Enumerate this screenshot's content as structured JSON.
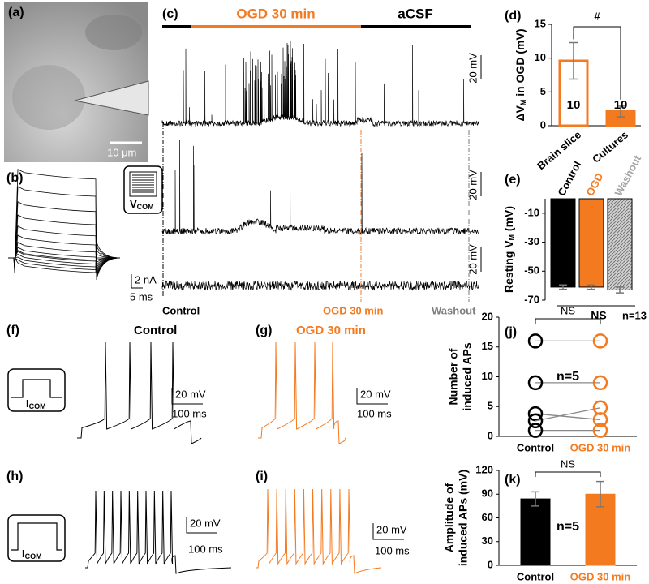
{
  "panels": {
    "a": {
      "label": "(a)",
      "scale": "10 μm"
    },
    "b": {
      "label": "(b)",
      "inset": [
        "V",
        "COM"
      ],
      "scale_y": "2 nA",
      "scale_x": "5 ms"
    },
    "c": {
      "label": "(c)",
      "bar_ogd": "OGD 30 min",
      "bar_acsf": "aCSF",
      "scales": [
        "20 mV",
        "20 mV",
        "20 mV"
      ],
      "markers": [
        "Control",
        "OGD 30 min",
        "Washout"
      ]
    },
    "f": {
      "label": "(f)",
      "title": "Control",
      "inset": [
        "I",
        "COM"
      ],
      "scale_y": "20 mV",
      "scale_x": "100 ms"
    },
    "g": {
      "label": "(g)",
      "title": "OGD 30 min",
      "scale_y": "20 mV",
      "scale_x": "100 ms"
    },
    "h": {
      "label": "(h)",
      "inset": [
        "I",
        "COM"
      ],
      "scale_y": "20 mV",
      "scale_x": "100 ms"
    },
    "i": {
      "label": "(i)",
      "scale_y": "20 mV",
      "scale_x": "100 ms"
    }
  },
  "chart_data": [
    {
      "type": "bar",
      "label": "(d)",
      "ylabel": [
        "ΔV",
        "M",
        " in OGD (mV)"
      ],
      "ylabel_style": "subscript",
      "categories": [
        "Brain slice",
        "Cultures"
      ],
      "values": [
        9.6,
        2.1
      ],
      "errors": [
        2.7,
        0.8
      ],
      "n": [
        10,
        10
      ],
      "colors": [
        "#ffffff",
        "#f47a20"
      ],
      "edge_color": "#f47a20",
      "ylim": [
        0,
        15
      ],
      "yticks": [
        0,
        5,
        10,
        15
      ],
      "annotation": "#"
    },
    {
      "type": "bar",
      "label": "(e)",
      "ylabel": [
        "Resting V",
        "M",
        " (mV)"
      ],
      "ylabel_style": "subscript",
      "categories": [
        "Control",
        "OGD",
        "Washout"
      ],
      "values": [
        -61,
        -61,
        -63
      ],
      "errors": [
        1.5,
        1.5,
        2
      ],
      "colors": [
        "#000000",
        "#f47a20",
        "#a6a6a6"
      ],
      "label_colors": [
        "#000000",
        "#f47a20",
        "#a6a6a6"
      ],
      "hatch": [
        false,
        false,
        true
      ],
      "edge_color": "#000000",
      "ylim": [
        -70,
        0
      ],
      "yticks": [
        -10,
        -30,
        -50,
        -70
      ],
      "annotation": "NS",
      "n_label": "n=13"
    },
    {
      "type": "line",
      "label": "(j)",
      "ylabel": [
        "Number of",
        "induced APs"
      ],
      "ylabel_style": "lines",
      "categories": [
        "Control",
        "OGD 30 min"
      ],
      "category_colors": [
        "#000000",
        "#f47a20"
      ],
      "line_color": "#888888",
      "series": [
        {
          "values": [
            16,
            16
          ]
        },
        {
          "values": [
            9,
            9
          ]
        },
        {
          "values": [
            3.8,
            2.8
          ]
        },
        {
          "values": [
            2.6,
            4.8
          ]
        },
        {
          "values": [
            1,
            1
          ]
        }
      ],
      "ylim": [
        0,
        20
      ],
      "yticks": [
        0,
        5,
        10,
        15,
        20
      ],
      "annotation": "NS",
      "n_label": "n=5"
    },
    {
      "type": "bar",
      "label": "(k)",
      "ylabel": [
        "Amplitude of",
        "induced APs (mV)"
      ],
      "ylabel_style": "lines",
      "categories": [
        "Control",
        "OGD 30 min"
      ],
      "values": [
        84,
        90
      ],
      "errors": [
        9,
        16
      ],
      "colors": [
        "#000000",
        "#f47a20"
      ],
      "label_colors": [
        "#000000",
        "#f47a20"
      ],
      "ylim": [
        0,
        120
      ],
      "yticks": [
        0,
        30,
        60,
        90,
        120
      ],
      "annotation": "NS",
      "n_label": "n=5"
    }
  ]
}
